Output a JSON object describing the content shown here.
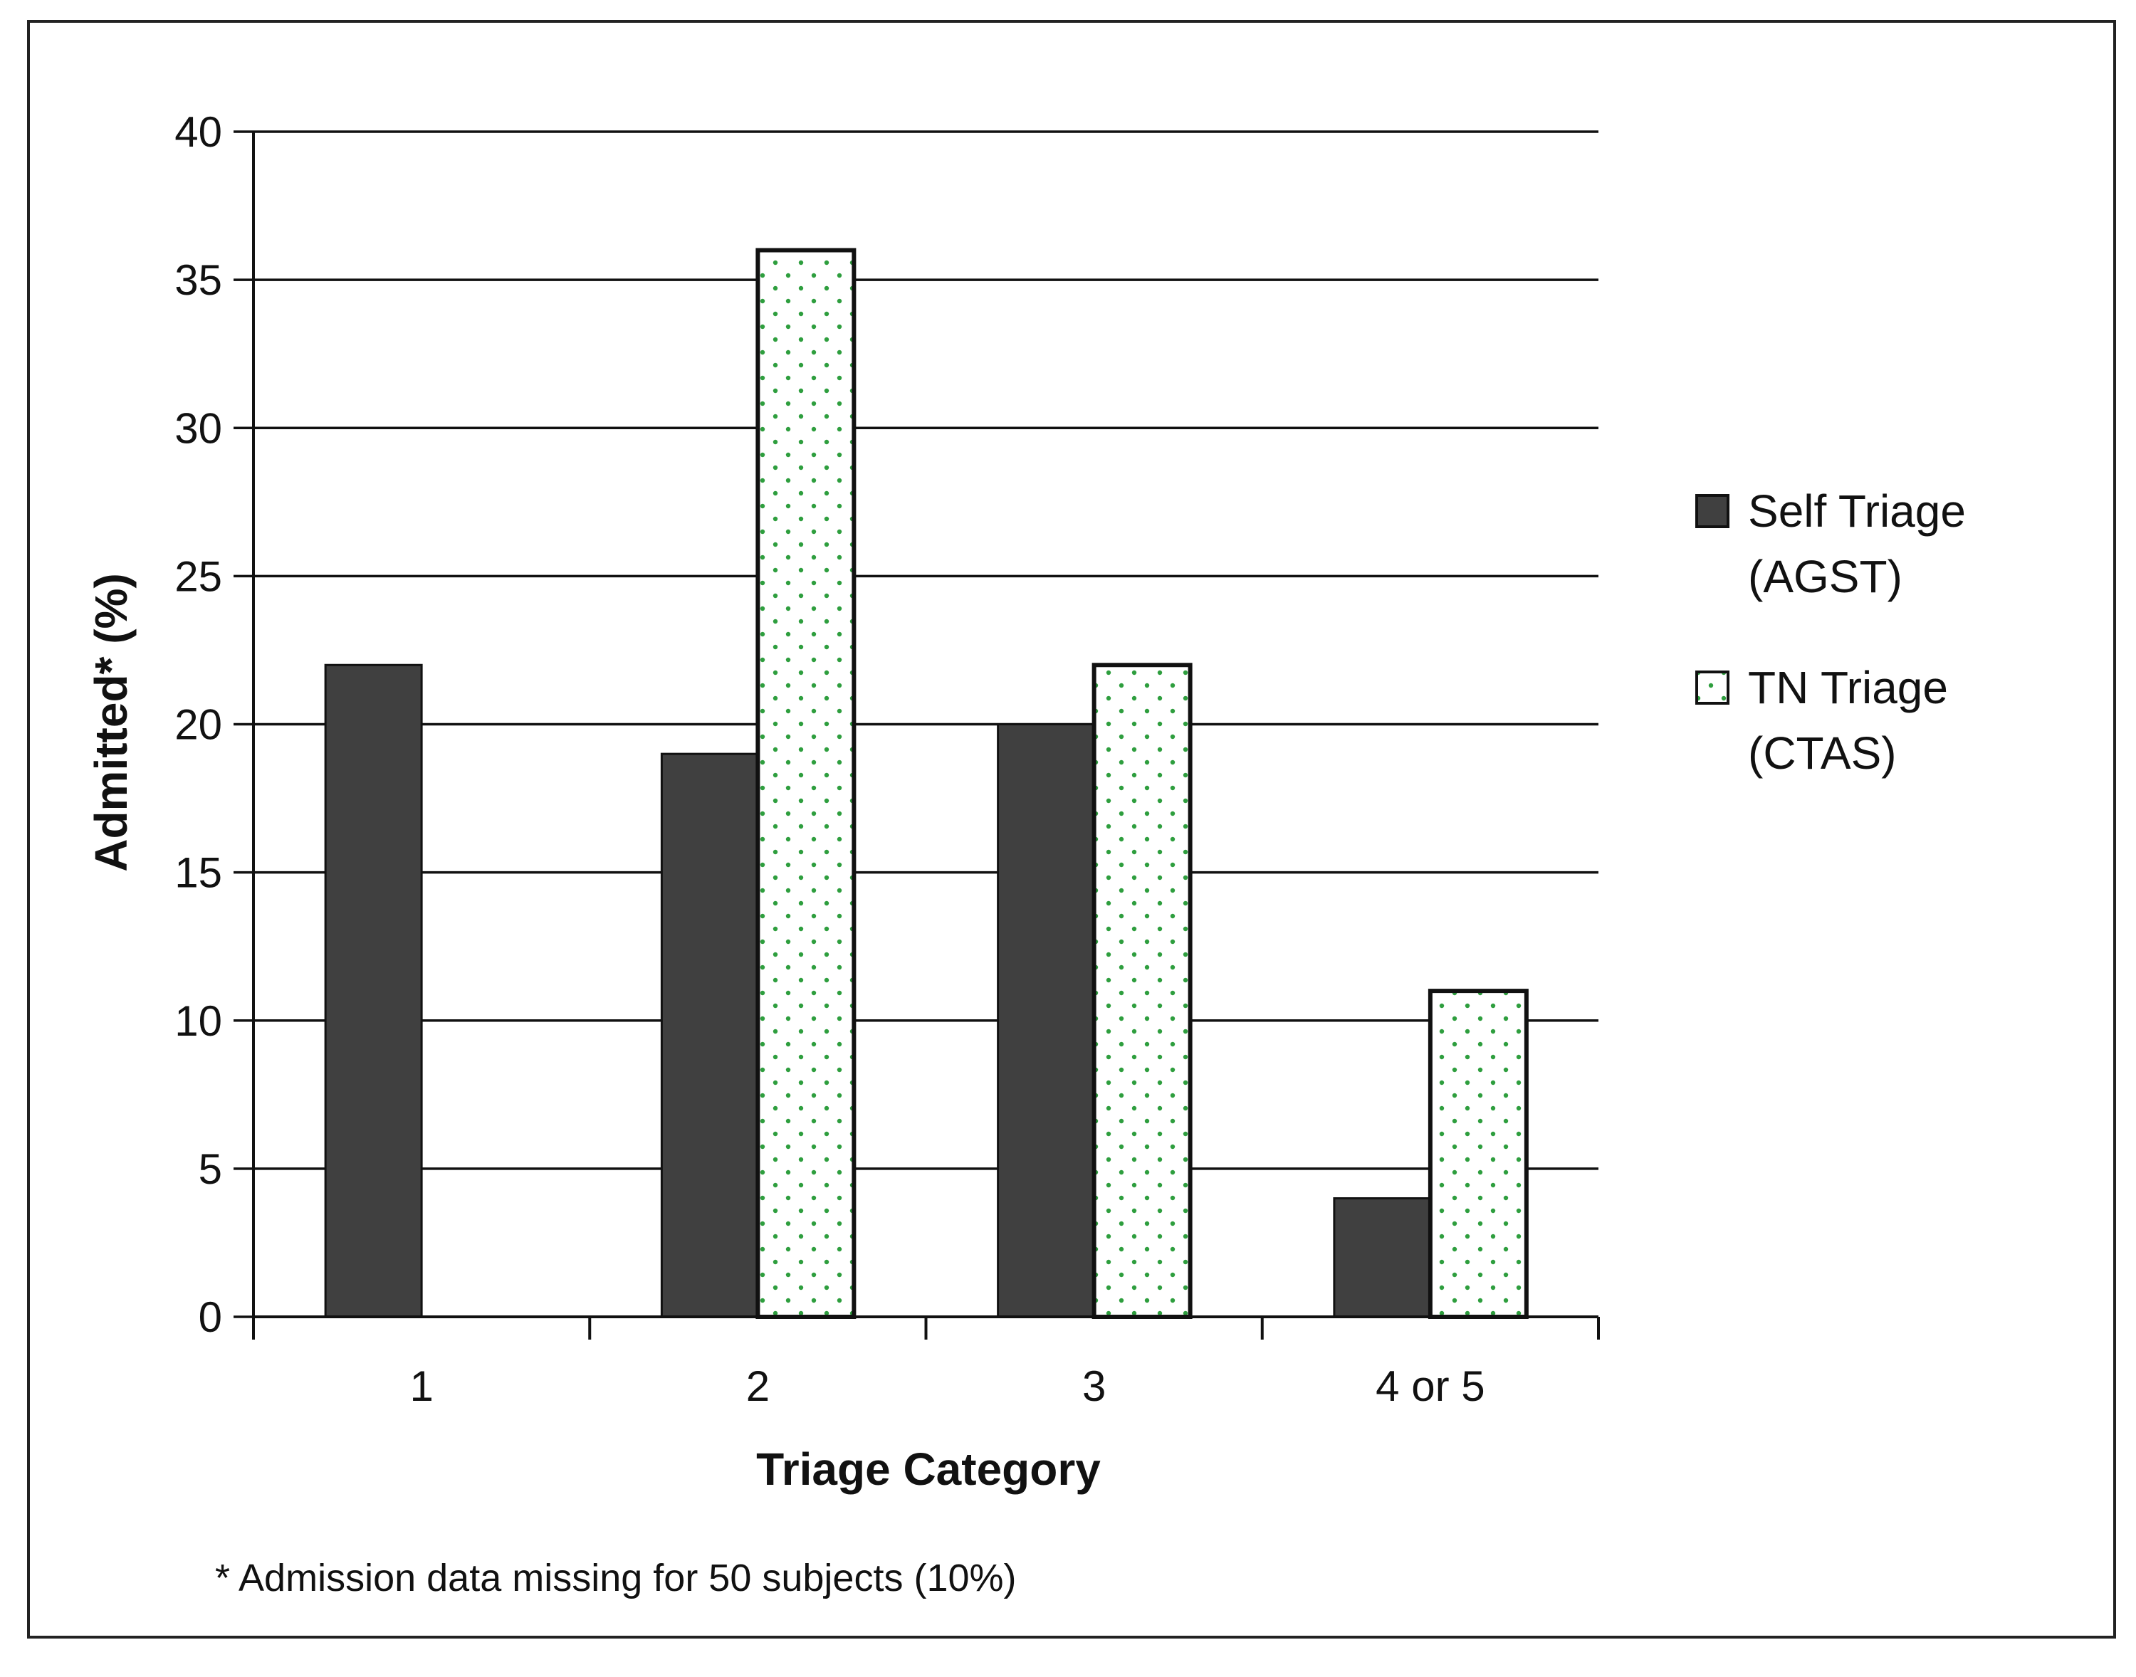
{
  "chart_data": {
    "type": "bar",
    "categories": [
      "1",
      "2",
      "3",
      "4 or 5"
    ],
    "series": [
      {
        "name": "Self Triage (AGST)",
        "name_lines": [
          "Self Triage",
          "(AGST)"
        ],
        "values": [
          22,
          19,
          20,
          4
        ],
        "fill": "#404040",
        "pattern": "solid"
      },
      {
        "name": "TN Triage (CTAS)",
        "name_lines": [
          "TN Triage",
          "(CTAS)"
        ],
        "values": [
          null,
          36,
          22,
          11
        ],
        "fill": "#ffffff",
        "pattern": "dotted",
        "dot_color": "#2e9e3e"
      }
    ],
    "title": "",
    "xlabel": "Triage Category",
    "ylabel": "Admitted* (%)",
    "ylim": [
      0,
      40
    ],
    "yticks": [
      0,
      5,
      10,
      15,
      20,
      25,
      30,
      35,
      40
    ],
    "grid": true,
    "legend_position": "right",
    "footnote": "* Admission data missing for 50 subjects (10%)"
  }
}
